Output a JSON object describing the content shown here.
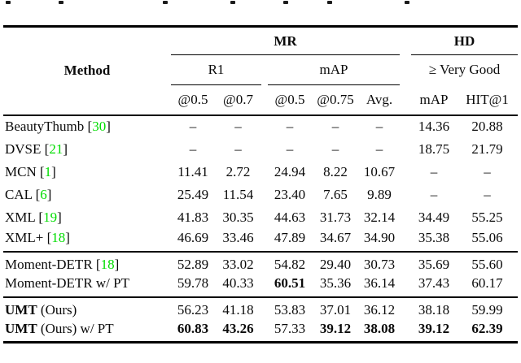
{
  "figure": {
    "method_header": "Method",
    "groups": [
      {
        "label": "MR"
      },
      {
        "label": "HD"
      }
    ],
    "subgroups": [
      {
        "label": "R1"
      },
      {
        "label": "mAP"
      },
      {
        "label": "≥ Very Good"
      }
    ],
    "metric_headers": [
      "@0.5",
      "@0.7",
      "@0.5",
      "@0.75",
      "Avg.",
      "mAP",
      "HIT@1"
    ],
    "citation_color": "#00dd00",
    "sections": [
      {
        "rows": [
          {
            "method": "BeautyThumb",
            "cite": "30",
            "values": [
              "–",
              "–",
              "–",
              "–",
              "–",
              "14.36",
              "20.88"
            ],
            "bold": [
              0,
              0,
              0,
              0,
              0,
              0,
              0
            ]
          },
          {
            "method": "DVSE",
            "cite": "21",
            "values": [
              "–",
              "–",
              "–",
              "–",
              "–",
              "18.75",
              "21.79"
            ],
            "bold": [
              0,
              0,
              0,
              0,
              0,
              0,
              0
            ]
          },
          {
            "method": "MCN",
            "cite": "1",
            "values": [
              "11.41",
              "2.72",
              "24.94",
              "8.22",
              "10.67",
              "–",
              "–"
            ],
            "bold": [
              0,
              0,
              0,
              0,
              0,
              0,
              0
            ]
          },
          {
            "method": "CAL",
            "cite": "6",
            "values": [
              "25.49",
              "11.54",
              "23.40",
              "7.65",
              "9.89",
              "–",
              "–"
            ],
            "bold": [
              0,
              0,
              0,
              0,
              0,
              0,
              0
            ]
          },
          {
            "method": "XML",
            "cite": "19",
            "values": [
              "41.83",
              "30.35",
              "44.63",
              "31.73",
              "32.14",
              "34.49",
              "55.25"
            ],
            "bold": [
              0,
              0,
              0,
              0,
              0,
              0,
              0
            ]
          },
          {
            "method": "XML+",
            "cite": "18",
            "values": [
              "46.69",
              "33.46",
              "47.89",
              "34.67",
              "34.90",
              "35.38",
              "55.06"
            ],
            "bold": [
              0,
              0,
              0,
              0,
              0,
              0,
              0
            ]
          }
        ]
      },
      {
        "rows": [
          {
            "method": "Moment-DETR",
            "cite": "18",
            "values": [
              "52.89",
              "33.02",
              "54.82",
              "29.40",
              "30.73",
              "35.69",
              "55.60"
            ],
            "bold": [
              0,
              0,
              0,
              0,
              0,
              0,
              0
            ]
          },
          {
            "method": "Moment-DETR w/ PT",
            "cite": null,
            "values": [
              "59.78",
              "40.33",
              "60.51",
              "35.36",
              "36.14",
              "37.43",
              "60.17"
            ],
            "bold": [
              0,
              0,
              1,
              0,
              0,
              0,
              0
            ]
          }
        ]
      },
      {
        "rows": [
          {
            "method_bold": "UMT",
            "method": " (Ours)",
            "cite": null,
            "values": [
              "56.23",
              "41.18",
              "53.83",
              "37.01",
              "36.12",
              "38.18",
              "59.99"
            ],
            "bold": [
              0,
              0,
              0,
              0,
              0,
              0,
              0
            ]
          },
          {
            "method_bold": "UMT",
            "method": " (Ours) w/ PT",
            "cite": null,
            "values": [
              "60.83",
              "43.26",
              "57.33",
              "39.12",
              "38.08",
              "39.12",
              "62.39"
            ],
            "bold": [
              1,
              1,
              0,
              1,
              1,
              1,
              1
            ]
          }
        ]
      }
    ],
    "fragment_positions": [
      7,
      72,
      200,
      283,
      348,
      402,
      497
    ]
  }
}
